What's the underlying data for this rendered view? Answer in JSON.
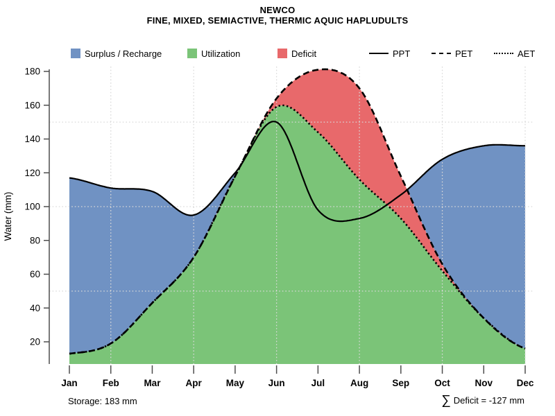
{
  "header": {
    "title": "NEWCO",
    "subtitle": "FINE, MIXED, SEMIACTIVE, THERMIC AQUIC HAPLUDULTS"
  },
  "legend": {
    "areas": [
      {
        "key": "surplus",
        "label": "Surplus / Recharge"
      },
      {
        "key": "utilization",
        "label": "Utilization"
      },
      {
        "key": "deficit",
        "label": "Deficit"
      }
    ],
    "lines": [
      {
        "name": "PPT",
        "style": "solid"
      },
      {
        "name": "PET",
        "style": "dashed"
      },
      {
        "name": "AET",
        "style": "dotted"
      }
    ]
  },
  "chart_data": {
    "type": "area",
    "title": "NEWCO",
    "subtitle": "FINE, MIXED, SEMIACTIVE, THERMIC AQUIC HAPLUDULTS",
    "categories": [
      "Jan",
      "Feb",
      "Mar",
      "Apr",
      "May",
      "Jun",
      "Jul",
      "Aug",
      "Sep",
      "Oct",
      "Nov",
      "Dec"
    ],
    "series": [
      {
        "name": "PPT",
        "style": "solid",
        "values": [
          117,
          111,
          109,
          95,
          120,
          150,
          98,
          93,
          107,
          128,
          136,
          136
        ]
      },
      {
        "name": "PET",
        "style": "dashed",
        "values": [
          13,
          19,
          43,
          70,
          118,
          164,
          181,
          170,
          118,
          66,
          34,
          16
        ]
      },
      {
        "name": "AET",
        "style": "dotted",
        "values": [
          13,
          19,
          43,
          70,
          118,
          159,
          144,
          116,
          93,
          62,
          34,
          16
        ]
      }
    ],
    "areas": [
      {
        "name": "Surplus / Recharge",
        "rule": "between PET and PPT where PPT > PET",
        "color_key": "surplus"
      },
      {
        "name": "Utilization",
        "rule": "under AET",
        "color_key": "utilization"
      },
      {
        "name": "Deficit",
        "rule": "between AET and PET where PET > AET",
        "color_key": "deficit"
      }
    ],
    "ylabel": "Water (mm)",
    "xlabel": "",
    "ylim": [
      7,
      183
    ],
    "yticks": [
      20,
      40,
      60,
      80,
      100,
      120,
      140,
      160,
      180
    ],
    "grid": {
      "h_values": [
        50,
        100,
        150
      ],
      "v_months": [
        "Feb",
        "Apr",
        "Jun",
        "Aug",
        "Oct",
        "Dec"
      ],
      "style": "dotted"
    },
    "legend_position": "top",
    "colors": {
      "surplus": "#7092C3",
      "utilization": "#7BC478",
      "deficit": "#E8696B",
      "line": "#000000",
      "axis": "#4d4d4d",
      "gridline": "#d9d9d9"
    }
  },
  "footer": {
    "storage": "Storage: 183 mm",
    "deficit_sigma": "∑",
    "deficit_text": "Deficit = -127 mm"
  }
}
